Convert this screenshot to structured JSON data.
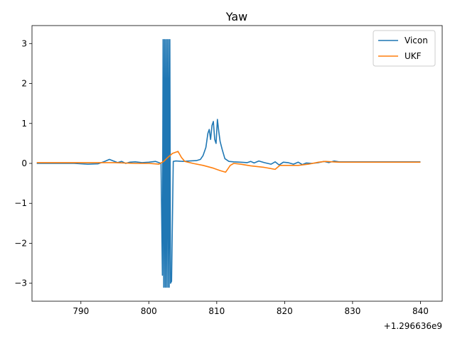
{
  "chart_data": {
    "type": "line",
    "title": "Yaw",
    "xlabel": "",
    "ylabel": "",
    "x_offset_label": "+1.296636e9",
    "xlim": [
      782.8,
      843.2
    ],
    "ylim": [
      -3.45,
      3.45
    ],
    "x_ticks": [
      790,
      800,
      810,
      820,
      830,
      840
    ],
    "x_tick_labels": [
      "790",
      "800",
      "810",
      "820",
      "830",
      "840"
    ],
    "y_ticks": [
      -3,
      -2,
      -1,
      0,
      1,
      2,
      3
    ],
    "y_tick_labels": [
      "−3",
      "−2",
      "−1",
      "0",
      "1",
      "2",
      "3"
    ],
    "grid": false,
    "legend": "top-right",
    "series": [
      {
        "name": "Vicon",
        "color": "#1f77b4",
        "x": [
          783.5,
          786,
          789,
          791,
          792.5,
          793.5,
          794.2,
          794.8,
          795.4,
          796,
          796.6,
          797.2,
          798,
          799,
          800,
          801,
          801.8,
          802.0,
          802.1,
          802.2,
          802.3,
          802.4,
          802.5,
          802.6,
          802.7,
          802.8,
          802.9,
          803.0,
          803.1,
          803.2,
          803.35,
          803.6,
          804,
          805,
          806,
          807,
          807.6,
          808.0,
          808.4,
          808.7,
          808.9,
          809.1,
          809.3,
          809.5,
          809.7,
          809.9,
          810.1,
          810.3,
          810.5,
          810.8,
          811.2,
          811.8,
          812.5,
          813.5,
          814.5,
          815,
          815.5,
          816.2,
          817,
          818,
          818.6,
          819.2,
          819.8,
          820.5,
          821.3,
          822,
          822.6,
          823.2,
          824,
          825,
          825.8,
          826.5,
          827.3,
          828,
          829,
          830,
          832,
          835,
          838,
          840
        ],
        "y": [
          0.0,
          0.0,
          0.0,
          -0.02,
          -0.01,
          0.05,
          0.1,
          0.06,
          0.02,
          0.05,
          0.0,
          0.03,
          0.04,
          0.02,
          0.03,
          0.05,
          0.0,
          -2.8,
          3.1,
          -3.1,
          3.1,
          -3.1,
          3.1,
          -3.1,
          3.1,
          -3.1,
          3.1,
          -3.1,
          3.1,
          -3.0,
          -2.95,
          0.05,
          0.06,
          0.05,
          0.06,
          0.07,
          0.1,
          0.2,
          0.4,
          0.75,
          0.85,
          0.6,
          0.95,
          1.05,
          0.6,
          0.5,
          1.1,
          0.8,
          0.55,
          0.35,
          0.12,
          0.05,
          0.04,
          0.03,
          0.02,
          0.05,
          0.01,
          0.06,
          0.02,
          -0.02,
          0.04,
          -0.04,
          0.03,
          0.02,
          -0.02,
          0.03,
          -0.03,
          0.01,
          0.0,
          0.02,
          0.05,
          0.02,
          0.06,
          0.04,
          0.04,
          0.04,
          0.04,
          0.04,
          0.04,
          0.04
        ]
      },
      {
        "name": "UKF",
        "color": "#ff7f0e",
        "x": [
          783.5,
          788,
          792,
          795,
          798,
          800,
          801.5,
          802.2,
          802.8,
          803.5,
          804.3,
          804.8,
          805.3,
          806.5,
          808,
          809.5,
          810.5,
          811.3,
          812.0,
          812.5,
          813.5,
          815,
          817,
          818.6,
          819.3,
          820.5,
          822,
          823.5,
          825,
          826,
          827,
          828,
          830,
          835,
          840
        ],
        "y": [
          0.02,
          0.02,
          0.02,
          0.02,
          0.0,
          0.0,
          -0.02,
          0.05,
          0.15,
          0.25,
          0.3,
          0.15,
          0.05,
          0.0,
          -0.05,
          -0.12,
          -0.18,
          -0.22,
          -0.05,
          0.0,
          -0.02,
          -0.06,
          -0.1,
          -0.15,
          -0.05,
          -0.05,
          -0.05,
          -0.02,
          0.03,
          0.05,
          0.04,
          0.03,
          0.03,
          0.03,
          0.03
        ]
      }
    ]
  }
}
